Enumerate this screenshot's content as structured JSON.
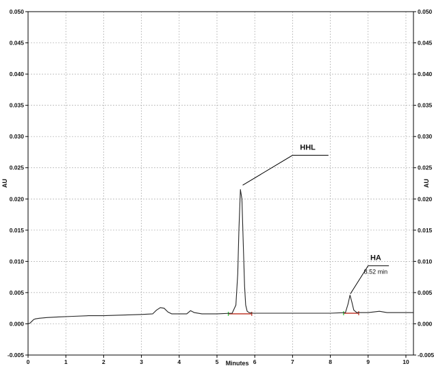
{
  "chart_data": {
    "type": "line",
    "title": "",
    "xlabel": "Minutes",
    "ylabel": "AU",
    "xlim": [
      0,
      10.2
    ],
    "ylim": [
      -0.005,
      0.05
    ],
    "grid": true,
    "x_ticks": [
      0,
      1,
      2,
      3,
      4,
      5,
      6,
      7,
      8,
      9,
      10
    ],
    "y_ticks": [
      -0.005,
      0.0,
      0.005,
      0.01,
      0.015,
      0.02,
      0.025,
      0.03,
      0.035,
      0.04,
      0.045,
      0.05
    ],
    "x_tick_labels": [
      "0",
      "1",
      "2",
      "3",
      "4",
      "5",
      "6",
      "7",
      "8",
      "9",
      "10"
    ],
    "y_tick_labels": [
      "-0.005",
      "0.000",
      "0.005",
      "0.010",
      "0.015",
      "0.020",
      "0.025",
      "0.030",
      "0.035",
      "0.040",
      "0.045",
      "0.050"
    ],
    "series": [
      {
        "color": "#222222",
        "x": [
          0.0,
          0.05,
          0.1,
          0.15,
          0.2,
          0.3,
          0.5,
          0.8,
          1.2,
          1.6,
          2.0,
          2.5,
          3.0,
          3.3,
          3.4,
          3.5,
          3.6,
          3.7,
          3.8,
          4.0,
          4.2,
          4.3,
          4.4,
          4.6,
          5.0,
          5.4,
          5.5,
          5.55,
          5.58,
          5.62,
          5.66,
          5.7,
          5.73,
          5.76,
          5.8,
          5.85,
          5.95,
          6.2,
          7.0,
          8.0,
          8.4,
          8.47,
          8.52,
          8.57,
          8.62,
          8.7,
          8.8,
          9.0,
          9.3,
          9.5,
          10.0,
          10.2
        ],
        "y": [
          0.0,
          0.0001,
          0.0004,
          0.0007,
          0.0008,
          0.0009,
          0.001,
          0.0011,
          0.0012,
          0.0013,
          0.0013,
          0.0014,
          0.0015,
          0.0016,
          0.0022,
          0.0026,
          0.0025,
          0.0019,
          0.0016,
          0.0016,
          0.0016,
          0.0021,
          0.0018,
          0.0016,
          0.0016,
          0.0017,
          0.003,
          0.008,
          0.015,
          0.0215,
          0.02,
          0.012,
          0.006,
          0.003,
          0.002,
          0.0018,
          0.0017,
          0.0017,
          0.0017,
          0.0017,
          0.0018,
          0.0032,
          0.0046,
          0.0035,
          0.0022,
          0.0018,
          0.0018,
          0.0018,
          0.002,
          0.0018,
          0.0018,
          0.0018
        ]
      }
    ],
    "baselines": [
      {
        "x0": 5.3,
        "x1": 5.92,
        "y": 0.0016,
        "color": "#c0392b"
      },
      {
        "x0": 8.35,
        "x1": 8.75,
        "y": 0.0017,
        "color": "#c0392b"
      }
    ],
    "markers": [
      {
        "x": 5.3,
        "y": 0.0016,
        "color": "#2ecc40"
      },
      {
        "x": 5.92,
        "y": 0.0016,
        "color": "#c0392b"
      },
      {
        "x": 8.35,
        "y": 0.0017,
        "color": "#2ecc40"
      },
      {
        "x": 8.75,
        "y": 0.0017,
        "color": "#c0392b"
      }
    ],
    "annotations": [
      {
        "text": "HHL",
        "sub": "",
        "peak_x": 5.68,
        "peak_y": 0.0222,
        "label_x": 7.0,
        "label_y": 0.027,
        "end_x": 7.95
      },
      {
        "text": "HA",
        "sub": "8.52 min",
        "peak_x": 8.53,
        "peak_y": 0.0048,
        "label_x": 9.0,
        "label_y": 0.0093,
        "end_x": 9.55
      }
    ]
  }
}
